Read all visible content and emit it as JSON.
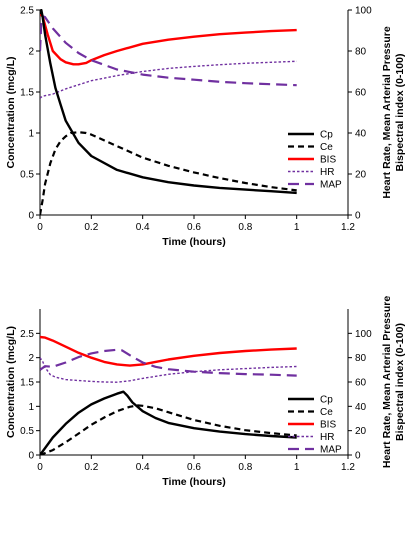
{
  "chart_data": [
    {
      "type": "line",
      "xlabel": "Time (hours)",
      "ylabel": "Concentration (mcg/L)",
      "y2label_line1": "Heart Rate, Mean Arterial Pressure",
      "y2label_line2": "Bispectral index (0-100)",
      "xlim": [
        0,
        1.2
      ],
      "ylim": [
        0,
        2.5
      ],
      "y2lim": [
        0,
        100
      ],
      "xticks": [
        "0",
        "0.2",
        "0.4",
        "0.6",
        "0.8",
        "1",
        "1.2"
      ],
      "yticks": [
        "0",
        "0.5",
        "1",
        "1.5",
        "2",
        "2.5"
      ],
      "y2ticks": [
        "0",
        "20",
        "40",
        "60",
        "80",
        "100"
      ],
      "legend_position": "right",
      "series": [
        {
          "name": "Cp",
          "axis": "left",
          "color": "#000000",
          "style": "solid",
          "x": [
            0,
            0.005,
            0.01,
            0.02,
            0.04,
            0.06,
            0.08,
            0.1,
            0.15,
            0.2,
            0.3,
            0.4,
            0.5,
            0.6,
            0.7,
            0.8,
            0.9,
            1.0
          ],
          "y": [
            2.45,
            2.5,
            2.42,
            2.2,
            1.85,
            1.55,
            1.35,
            1.15,
            0.88,
            0.72,
            0.55,
            0.46,
            0.4,
            0.36,
            0.33,
            0.31,
            0.29,
            0.27
          ]
        },
        {
          "name": "Ce",
          "axis": "left",
          "color": "#000000",
          "style": "dashed",
          "x": [
            0,
            0.01,
            0.02,
            0.04,
            0.06,
            0.08,
            0.1,
            0.12,
            0.15,
            0.18,
            0.2,
            0.25,
            0.3,
            0.4,
            0.5,
            0.6,
            0.7,
            0.8,
            0.9,
            1.0
          ],
          "y": [
            0,
            0.18,
            0.38,
            0.63,
            0.8,
            0.9,
            0.96,
            1.0,
            1.01,
            1.0,
            0.98,
            0.91,
            0.84,
            0.7,
            0.6,
            0.52,
            0.45,
            0.39,
            0.34,
            0.3
          ]
        },
        {
          "name": "BIS",
          "axis": "right",
          "color": "#ff0000",
          "style": "solid",
          "x": [
            0,
            0.01,
            0.03,
            0.05,
            0.08,
            0.1,
            0.13,
            0.15,
            0.18,
            0.2,
            0.25,
            0.3,
            0.4,
            0.5,
            0.6,
            0.7,
            0.8,
            0.9,
            1.0
          ],
          "y": [
            98,
            97,
            88,
            80,
            76,
            74.5,
            73.5,
            73.5,
            74.2,
            75.5,
            78,
            80,
            83.5,
            85.5,
            87,
            88.2,
            89,
            89.7,
            90.2
          ]
        },
        {
          "name": "HR",
          "axis": "right",
          "color": "#7030a0",
          "style": "dotted",
          "x": [
            0,
            0.01,
            0.03,
            0.05,
            0.1,
            0.15,
            0.2,
            0.3,
            0.4,
            0.5,
            0.6,
            0.7,
            0.8,
            0.9,
            1.0
          ],
          "y": [
            57,
            58,
            58.5,
            59,
            61.5,
            63.5,
            65.5,
            68,
            70,
            71.5,
            72.5,
            73.3,
            74,
            74.5,
            75
          ]
        },
        {
          "name": "MAP",
          "axis": "right",
          "color": "#7030a0",
          "style": "longdash",
          "x": [
            0,
            0.005,
            0.01,
            0.02,
            0.05,
            0.1,
            0.15,
            0.2,
            0.3,
            0.4,
            0.5,
            0.6,
            0.7,
            0.8,
            0.9,
            1.0
          ],
          "y": [
            80,
            94,
            97,
            96.5,
            91,
            84,
            79,
            75.5,
            71,
            68.5,
            67,
            66,
            65,
            64.3,
            63.8,
            63.3
          ]
        }
      ]
    },
    {
      "type": "line",
      "xlabel": "Time (hours)",
      "ylabel": "Concentration (mcg/L)",
      "y2label_line1": "Heart Rate, Mean Arterial Pressure",
      "y2label_line2": "Bispectral index (0-100)",
      "xlim": [
        0,
        1.2
      ],
      "ylim": [
        0,
        3
      ],
      "y2lim": [
        0,
        120
      ],
      "xticks": [
        "0",
        "0.2",
        "0.4",
        "0.6",
        "0.8",
        "1",
        "1.2"
      ],
      "yticks": [
        "0",
        "0.5",
        "1",
        "1.5",
        "2",
        "2.5"
      ],
      "y2ticks": [
        "0",
        "20",
        "40",
        "60",
        "80",
        "100"
      ],
      "legend_position": "right",
      "series": [
        {
          "name": "Cp",
          "axis": "left",
          "color": "#000000",
          "style": "solid",
          "x": [
            0,
            0.05,
            0.1,
            0.15,
            0.2,
            0.25,
            0.3,
            0.325,
            0.34,
            0.36,
            0.4,
            0.45,
            0.5,
            0.6,
            0.7,
            0.8,
            0.9,
            1.0
          ],
          "y": [
            0,
            0.36,
            0.64,
            0.87,
            1.04,
            1.16,
            1.26,
            1.3,
            1.22,
            1.08,
            0.9,
            0.76,
            0.66,
            0.55,
            0.48,
            0.43,
            0.39,
            0.36
          ]
        },
        {
          "name": "Ce",
          "axis": "left",
          "color": "#000000",
          "style": "dashed",
          "x": [
            0,
            0.05,
            0.1,
            0.15,
            0.2,
            0.25,
            0.3,
            0.35,
            0.38,
            0.4,
            0.45,
            0.5,
            0.6,
            0.7,
            0.8,
            0.9,
            1.0
          ],
          "y": [
            0,
            0.1,
            0.26,
            0.44,
            0.62,
            0.77,
            0.9,
            0.99,
            1.02,
            1.01,
            0.96,
            0.88,
            0.72,
            0.6,
            0.51,
            0.45,
            0.4
          ]
        },
        {
          "name": "BIS",
          "axis": "right",
          "color": "#ff0000",
          "style": "solid",
          "x": [
            0,
            0.02,
            0.05,
            0.1,
            0.15,
            0.2,
            0.25,
            0.3,
            0.35,
            0.4,
            0.45,
            0.5,
            0.6,
            0.7,
            0.8,
            0.9,
            1.0
          ],
          "y": [
            97,
            96.5,
            94,
            89,
            84,
            80,
            76.5,
            74.5,
            73.5,
            74.5,
            76.5,
            78.5,
            81.5,
            83.8,
            85.5,
            86.6,
            87.5
          ]
        },
        {
          "name": "HR",
          "axis": "right",
          "color": "#7030a0",
          "style": "dotted",
          "x": [
            0,
            0.01,
            0.02,
            0.04,
            0.06,
            0.1,
            0.15,
            0.2,
            0.25,
            0.3,
            0.35,
            0.4,
            0.5,
            0.6,
            0.7,
            0.8,
            0.9,
            1.0
          ],
          "y": [
            80,
            77,
            72,
            66,
            64,
            62,
            61.2,
            60.5,
            60,
            59.8,
            61,
            63,
            66.3,
            68.5,
            70,
            71,
            72,
            72.7
          ]
        },
        {
          "name": "MAP",
          "axis": "right",
          "color": "#7030a0",
          "style": "longdash",
          "x": [
            0,
            0.02,
            0.05,
            0.1,
            0.15,
            0.2,
            0.25,
            0.3,
            0.32,
            0.35,
            0.4,
            0.45,
            0.5,
            0.6,
            0.7,
            0.8,
            0.9,
            1.0
          ],
          "y": [
            70,
            73,
            72.5,
            76,
            80.5,
            83.5,
            85.5,
            86.5,
            86,
            82,
            76,
            72.5,
            70.5,
            68.5,
            67.3,
            66.5,
            66,
            65.3
          ]
        }
      ]
    }
  ]
}
